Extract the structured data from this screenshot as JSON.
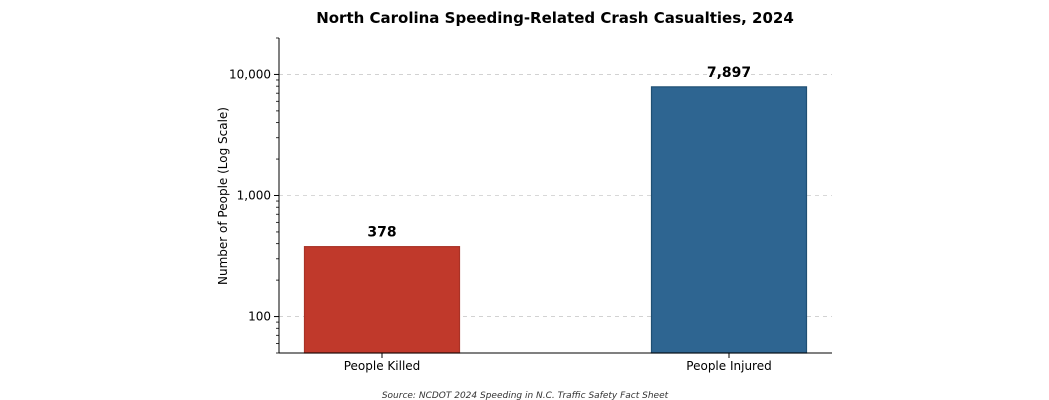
{
  "chart_data": {
    "type": "bar",
    "title": "North Carolina Speeding-Related Crash Casualties, 2024",
    "ylabel": "Number of People (Log Scale)",
    "xlabel": "",
    "yscale": "log",
    "ylim": [
      50,
      20000
    ],
    "grid": "y-dashed",
    "categories": [
      "People Killed",
      "People Injured"
    ],
    "values": [
      378,
      7897
    ],
    "value_labels": [
      "378",
      "7,897"
    ],
    "colors": [
      "#c0392b",
      "#2e6591"
    ],
    "edge_colors": [
      "#a93226",
      "#1f4f73"
    ],
    "yticks": [
      {
        "value": 100,
        "label": "100"
      },
      {
        "value": 1000,
        "label": "1,000"
      },
      {
        "value": 10000,
        "label": "10,000"
      }
    ],
    "source": "Source: NCDOT 2024 Speeding in N.C. Traffic Safety Fact Sheet"
  }
}
